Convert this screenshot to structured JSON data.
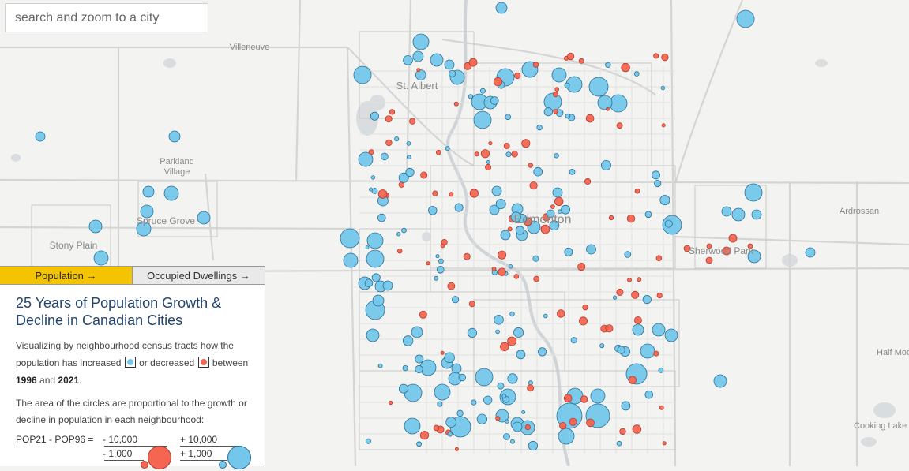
{
  "search": {
    "placeholder": "search and zoom to a city"
  },
  "tabs": {
    "population": "Population →",
    "dwellings": "Occupied Dwellings →"
  },
  "panel": {
    "title": "25 Years of Population Growth & Decline in Canadian Cities",
    "desc_1": "Visualizing by neighbourhood census tracts how the population has increased",
    "desc_2": "or decreased",
    "desc_3": "between",
    "year_start": "1996",
    "and": "and",
    "year_end": "2021",
    "desc_end": ".",
    "area_note": "The area of the circles are proportional to the growth or decline in population in each neighbourhood:",
    "formula": "POP21 - POP96 =",
    "neg_large": "- 10,000",
    "neg_small": "- 1,000",
    "pos_large": "+ 10,000",
    "pos_small": "+ 1,000"
  },
  "colors": {
    "increase": "#74c7ea",
    "decrease": "#f46552",
    "increase_stroke": "#2a6f96",
    "decrease_stroke": "#b63a2c",
    "accent": "#f5c400",
    "title": "#23456e"
  },
  "places": [
    {
      "name": "Villeneuve",
      "weight": "minor"
    },
    {
      "name": "St. Albert",
      "weight": "mid"
    },
    {
      "name": "Edmonton",
      "weight": "major"
    },
    {
      "name": "Parkland",
      "weight": "minor"
    },
    {
      "name": "Village",
      "weight": "minor"
    },
    {
      "name": "Spruce Grove",
      "weight": "mid"
    },
    {
      "name": "Stony Plain",
      "weight": "mid"
    },
    {
      "name": "Sherwood Park",
      "weight": "mid"
    },
    {
      "name": "Ardrossan",
      "weight": "minor"
    },
    {
      "name": "Half Moo",
      "weight": "minor"
    },
    {
      "name": "Cooking Lake",
      "weight": "minor"
    }
  ]
}
